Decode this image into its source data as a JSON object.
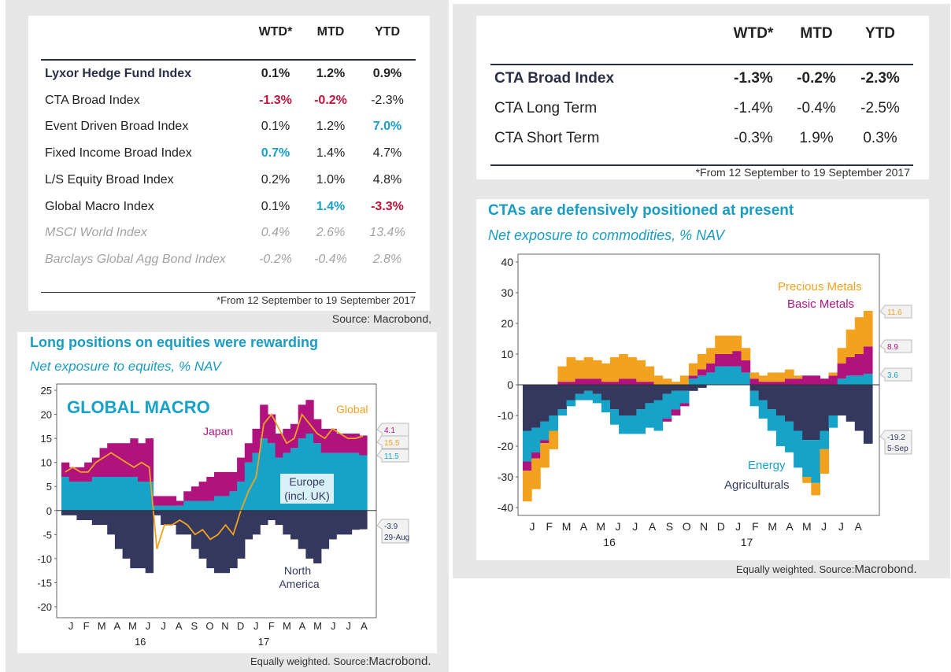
{
  "left_table": {
    "headers": [
      "WTD*",
      "MTD",
      "YTD"
    ],
    "rows": [
      {
        "name": "Lyxor Hedge Fund Index",
        "wtd": "0.1%",
        "mtd": "1.2%",
        "ytd": "0.9%",
        "style": [
          "bold",
          "bold",
          "bold",
          "bold"
        ]
      },
      {
        "name": "CTA Broad Index",
        "wtd": "-1.3%",
        "mtd": "-0.2%",
        "ytd": "-2.3%",
        "style": [
          "",
          "red",
          "red",
          ""
        ]
      },
      {
        "name": "Event Driven Broad Index",
        "wtd": "0.1%",
        "mtd": "1.2%",
        "ytd": "7.0%",
        "style": [
          "",
          "",
          "",
          "cyan"
        ]
      },
      {
        "name": "Fixed Income Broad Index",
        "wtd": "0.7%",
        "mtd": "1.4%",
        "ytd": "4.7%",
        "style": [
          "",
          "cyan",
          "",
          ""
        ]
      },
      {
        "name": "L/S Equity Broad Index",
        "wtd": "0.2%",
        "mtd": "1.0%",
        "ytd": "4.8%",
        "style": [
          "",
          "",
          "",
          ""
        ]
      },
      {
        "name": "Global Macro Index",
        "wtd": "0.1%",
        "mtd": "1.4%",
        "ytd": "-3.3%",
        "style": [
          "",
          "",
          "cyan",
          "red"
        ]
      },
      {
        "name": "MSCI World Index",
        "wtd": "0.4%",
        "mtd": "2.6%",
        "ytd": "13.4%",
        "style": [
          "grey",
          "grey",
          "grey",
          "grey"
        ]
      },
      {
        "name": "Barclays Global Agg Bond Index",
        "wtd": "-0.2%",
        "mtd": "-0.4%",
        "ytd": "2.8%",
        "style": [
          "grey",
          "grey",
          "grey",
          "grey"
        ]
      }
    ],
    "footnote": "*From 12 September to 19 September 2017",
    "source": "Source: Macrobond,"
  },
  "right_table": {
    "headers": [
      "WTD*",
      "MTD",
      "YTD"
    ],
    "rows": [
      {
        "name": "CTA Broad Index",
        "wtd": "-1.3%",
        "mtd": "-0.2%",
        "ytd": "-2.3%",
        "bold": true
      },
      {
        "name": "CTA Long Term",
        "wtd": "-1.4%",
        "mtd": "-0.4%",
        "ytd": "-2.5%",
        "bold": false
      },
      {
        "name": "CTA Short Term",
        "wtd": "-0.3%",
        "mtd": "1.9%",
        "ytd": "0.3%",
        "bold": false
      }
    ],
    "footnote": "*From 12 September to 19 September 2017"
  },
  "colors": {
    "cyan": "#17a2c8",
    "magenta": "#b0127e",
    "orange": "#f2a21f",
    "navy": "#34385e",
    "red": "#c0143c"
  },
  "chart_data": [
    {
      "type": "area",
      "title": "Long positions on equities were rewarding",
      "subtitle": "Net exposure to equites, % NAV",
      "annotation": "GLOBAL MACRO",
      "footer_prefix": "Equally weighted. Source:",
      "footer_source": "Macrobond.",
      "ylim": [
        -20,
        25
      ],
      "yticks": [
        25,
        20,
        15,
        10,
        5,
        0,
        -5,
        -10,
        -15,
        -20
      ],
      "xtick_labels": [
        "J",
        "F",
        "M",
        "A",
        "M",
        "J",
        "J",
        "A",
        "S",
        "O",
        "N",
        "D",
        "J",
        "F",
        "M",
        "A",
        "M",
        "J",
        "J",
        "A"
      ],
      "year_labels": [
        "16",
        "17"
      ],
      "series": [
        {
          "name": "Europe (incl. UK)",
          "color": "#17a2c8",
          "kind": "area",
          "values": [
            7,
            6,
            6,
            6,
            7,
            7,
            7,
            7,
            7,
            7,
            6,
            6,
            1,
            1,
            1,
            1,
            2,
            2,
            2,
            2,
            3,
            3,
            4,
            6,
            10,
            12,
            15,
            14,
            11,
            12,
            13,
            15,
            16,
            14,
            12,
            12,
            12,
            12,
            12,
            11.5
          ]
        },
        {
          "name": "Japan",
          "color": "#b0127e",
          "kind": "area",
          "values": [
            3,
            3,
            3,
            4,
            4,
            6,
            7,
            7,
            7,
            8,
            8,
            9,
            2,
            2,
            2,
            1,
            2,
            3,
            4,
            5,
            5,
            5,
            4,
            5,
            4,
            5,
            7,
            6,
            5,
            5,
            5,
            7,
            7,
            5,
            5,
            5,
            4,
            4,
            4,
            4.1
          ]
        },
        {
          "name": "North America",
          "color": "#34385e",
          "kind": "area",
          "values": [
            -1,
            -1,
            -2,
            -2,
            -3,
            -3,
            -5,
            -8,
            -10,
            -12,
            -12,
            -13,
            -1,
            -3,
            -3,
            -5,
            -5,
            -8,
            -10,
            -12,
            -13,
            -13,
            -12,
            -10,
            -6,
            -5,
            -3,
            -2,
            -3,
            -5,
            -6,
            -8,
            -10,
            -11,
            -8,
            -6,
            -5,
            -5,
            -4,
            -3.9
          ]
        },
        {
          "name": "Global",
          "color": "#f2a21f",
          "kind": "line",
          "values": [
            8,
            9,
            8,
            8,
            10,
            11,
            12,
            11,
            10,
            9,
            10,
            9,
            -8,
            -3,
            -3,
            -2,
            -3,
            -5,
            -4,
            -6,
            -5,
            -3,
            -5,
            0,
            4,
            7,
            18,
            20,
            17,
            14,
            15,
            20,
            18,
            16,
            15,
            17,
            16,
            15,
            15,
            15.5
          ]
        }
      ],
      "end_labels": [
        {
          "text": "4.1",
          "color": "#b0127e"
        },
        {
          "text": "15.5",
          "color": "#f2a21f"
        },
        {
          "text": "11.5",
          "color": "#17a2c8"
        },
        {
          "text": "-3.9",
          "text2": "29-Aug",
          "color": "#34385e"
        }
      ]
    },
    {
      "type": "area",
      "title": "CTAs are defensively positioned at present",
      "subtitle": "Net exposure to commodities, % NAV",
      "footer_prefix": "Equally weighted. Source:",
      "footer_source": "Macrobond.",
      "ylim": [
        -40,
        40
      ],
      "yticks": [
        40,
        30,
        20,
        10,
        0,
        -10,
        -20,
        -30,
        -40
      ],
      "xtick_labels": [
        "J",
        "F",
        "M",
        "A",
        "M",
        "J",
        "J",
        "A",
        "S",
        "O",
        "N",
        "D",
        "J",
        "F",
        "M",
        "A",
        "M",
        "J",
        "J",
        "A"
      ],
      "year_labels": [
        "16",
        "17"
      ],
      "series": [
        {
          "name": "Agriculturals",
          "color": "#34385e",
          "kind": "area",
          "values": [
            -15,
            -14,
            -12,
            -10,
            -8,
            -5,
            -3,
            -2,
            -3,
            -5,
            -8,
            -10,
            -10,
            -8,
            -6,
            -5,
            -3,
            -2,
            -2,
            -2,
            -1,
            0,
            0,
            0,
            0,
            0,
            -2,
            -5,
            -8,
            -10,
            -12,
            -15,
            -18,
            -18,
            -15,
            -10,
            -10,
            -12,
            -15,
            -19.2
          ]
        },
        {
          "name": "Energy",
          "color": "#17a2c8",
          "kind": "area",
          "values": [
            -10,
            -8,
            -6,
            -5,
            -2,
            -2,
            -2,
            -3,
            -3,
            -4,
            -5,
            -6,
            -6,
            -8,
            -8,
            -10,
            -8,
            -6,
            -4,
            2,
            3,
            4,
            6,
            6,
            6,
            4,
            -5,
            -6,
            -7,
            -10,
            -10,
            -12,
            -12,
            -14,
            -6,
            -4,
            2,
            3,
            3,
            3.6
          ]
        },
        {
          "name": "Basic Metals",
          "color": "#b0127e",
          "kind": "area",
          "values": [
            -3,
            -2,
            -1,
            0,
            1,
            1,
            2,
            2,
            2,
            1,
            1,
            2,
            2,
            1,
            1,
            0,
            -1,
            -2,
            -1,
            1,
            2,
            3,
            4,
            4,
            5,
            4,
            2,
            1,
            1,
            1,
            2,
            2,
            3,
            3,
            2,
            3,
            5,
            6,
            7,
            8.9
          ]
        },
        {
          "name": "Precious Metals",
          "color": "#f2a21f",
          "kind": "area",
          "values": [
            -10,
            -10,
            -8,
            -6,
            5,
            8,
            6,
            7,
            6,
            6,
            8,
            8,
            7,
            7,
            5,
            3,
            2,
            1,
            3,
            4,
            5,
            5,
            6,
            6,
            5,
            4,
            2,
            2,
            3,
            3,
            3,
            1,
            -2,
            -4,
            -8,
            1,
            5,
            9,
            12,
            11.6
          ]
        }
      ],
      "end_labels": [
        {
          "text": "11.6",
          "color": "#f2a21f"
        },
        {
          "text": "8.9",
          "color": "#b0127e"
        },
        {
          "text": "3.6",
          "color": "#17a2c8"
        },
        {
          "text": "-19.2",
          "text2": "5-Sep",
          "color": "#34385e"
        }
      ]
    }
  ]
}
